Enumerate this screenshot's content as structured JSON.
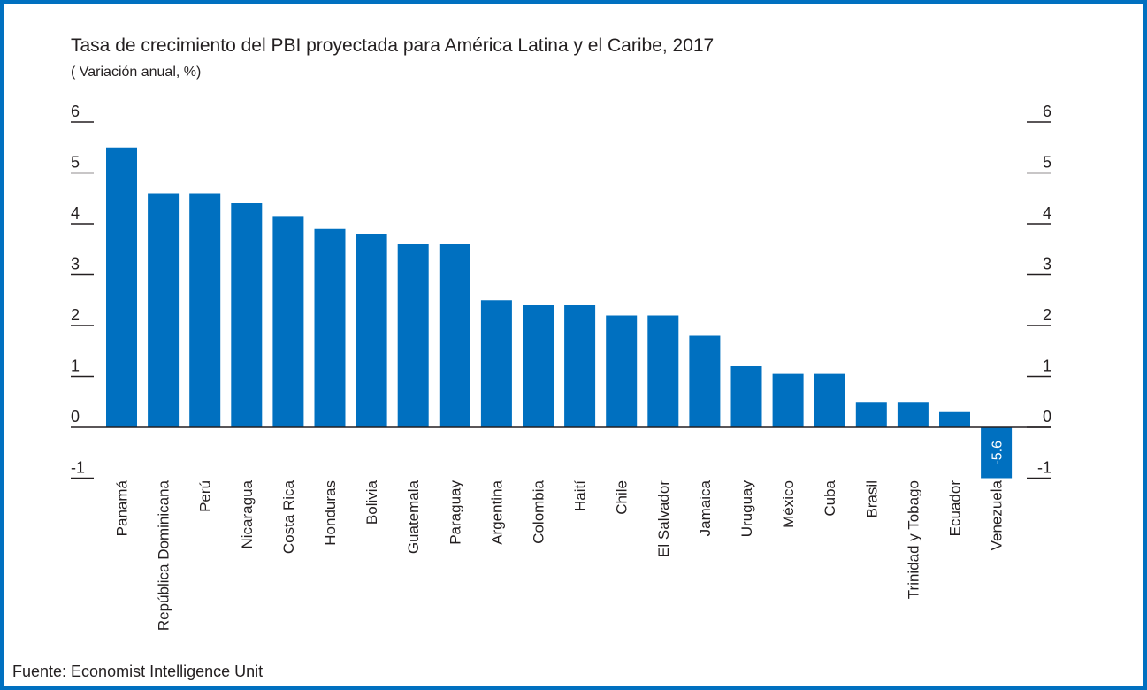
{
  "header": {
    "title": "Tasa de crecimiento del PBI proyectada para América Latina y el Caribe, 2017",
    "subtitle": "( Variación anual, %)"
  },
  "footer": {
    "source": "Fuente: Economist Intelligence Unit"
  },
  "colors": {
    "bar": "#0070C0",
    "frame": "#0070C0",
    "text": "#231f20"
  },
  "chart_data": {
    "type": "bar",
    "title": "Tasa de crecimiento del PBI proyectada para América Latina y el Caribe, 2017",
    "subtitle": "( Variación anual, %)",
    "xlabel": "",
    "ylabel": "",
    "ylim": [
      -1,
      6
    ],
    "yticks": [
      "6",
      "5",
      "4",
      "3",
      "2",
      "1",
      "0",
      "-1"
    ],
    "categories": [
      "Panamá",
      "República Dominicana",
      "Perú",
      "Nicaragua",
      "Costa Rica",
      "Honduras",
      "Bolivia",
      "Guatemala",
      "Paraguay",
      "Argentina",
      "Colombia",
      "Haití",
      "Chile",
      "El Salvador",
      "Jamaica",
      "Uruguay",
      "México",
      "Cuba",
      "Brasil",
      "Trinidad y Tobago",
      "Ecuador",
      "Venezuela"
    ],
    "values": [
      5.5,
      4.6,
      4.6,
      4.4,
      4.15,
      3.9,
      3.8,
      3.6,
      3.6,
      2.5,
      2.4,
      2.4,
      2.2,
      2.2,
      1.8,
      1.2,
      1.05,
      1.05,
      0.5,
      0.5,
      0.3,
      -5.6
    ],
    "data_labels": [
      {
        "category": "Venezuela",
        "label": "-5.6"
      }
    ],
    "axis_break": {
      "category": "Venezuela",
      "note": "bar truncated at -1"
    },
    "grid": false,
    "axes": "left-and-right"
  }
}
